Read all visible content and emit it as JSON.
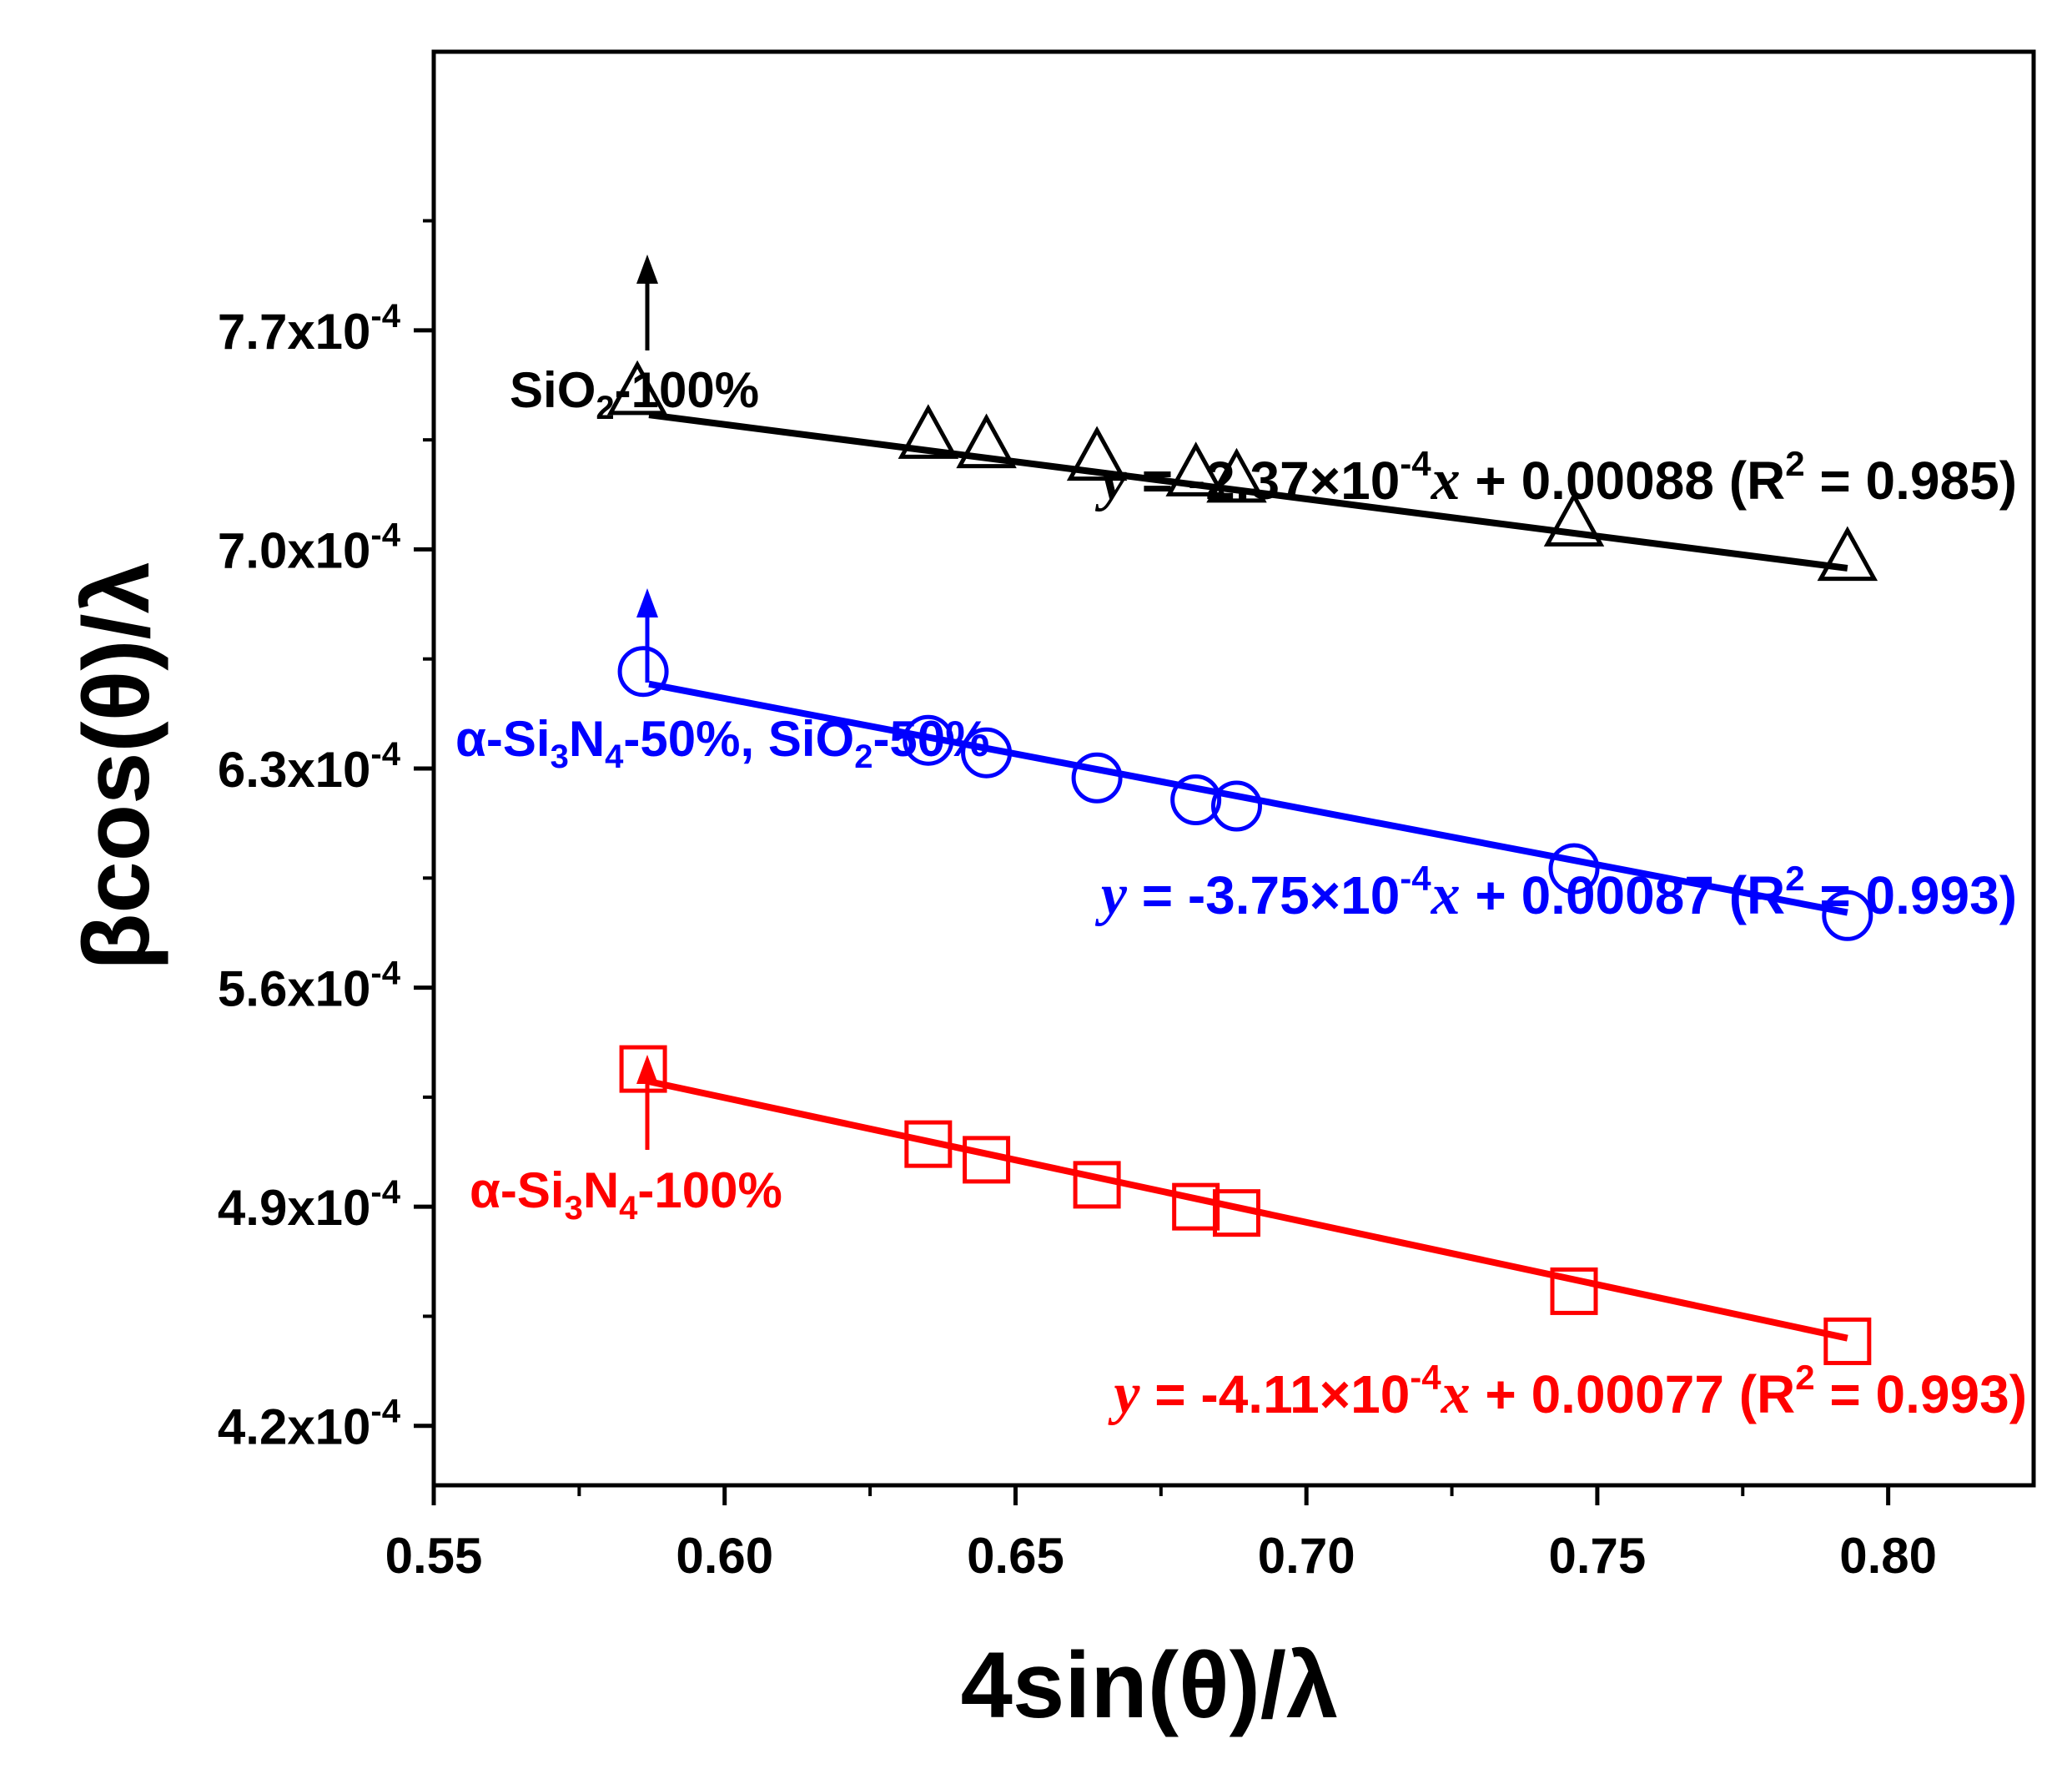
{
  "chart_data": {
    "type": "scatter",
    "xlabel": "4sin(θ)/λ",
    "ylabel": "βcos(θ)/λ",
    "xlim": [
      0.55,
      0.825
    ],
    "ylim": [
      0.000401,
      0.000859
    ],
    "x_ticks": [
      0.55,
      0.6,
      0.65,
      0.7,
      0.75,
      0.8
    ],
    "x_tick_labels": [
      "0.55",
      "0.60",
      "0.65",
      "0.70",
      "0.75",
      "0.80"
    ],
    "y_ticks": [
      0.00042,
      0.00049,
      0.00056,
      0.00063,
      0.0007,
      0.00077
    ],
    "y_tick_labels": [
      {
        "mantissa": "4.2x10",
        "exp": "-4"
      },
      {
        "mantissa": "4.9x10",
        "exp": "-4"
      },
      {
        "mantissa": "5.6x10",
        "exp": "-4"
      },
      {
        "mantissa": "6.3x10",
        "exp": "-4"
      },
      {
        "mantissa": "7.0x10",
        "exp": "-4"
      },
      {
        "mantissa": "7.7x10",
        "exp": "-4"
      }
    ],
    "series": [
      {
        "name": "SiO2-100%",
        "color": "#000000",
        "marker": "triangle",
        "x": [
          0.585,
          0.635,
          0.645,
          0.664,
          0.681,
          0.688,
          0.746,
          0.793
        ],
        "y": [
          0.00075,
          0.000736,
          0.000733,
          0.000729,
          0.000724,
          0.000722,
          0.000708,
          0.000697
        ],
        "fit": {
          "slope": -0.000237,
          "intercept": 0.00088,
          "r2": 0.985
        },
        "fit_line": {
          "x": [
            0.587,
            0.793
          ],
          "y": [
            0.000743,
            0.000694
          ]
        },
        "label": {
          "pre": "SiO",
          "sub": "2",
          "post": "-100%"
        },
        "equation": {
          "y": "y",
          "eq1": " = -2.37×10",
          "exp": "-4",
          "x": "x",
          "eq2": " + 0.00088 (R",
          "r2sup": "2",
          "eq3": " = 0.985)"
        }
      },
      {
        "name": "α-Si3N4-50%, SiO2-50%",
        "color": "#0000ff",
        "marker": "circle",
        "x": [
          0.586,
          0.635,
          0.645,
          0.664,
          0.681,
          0.688,
          0.746,
          0.793
        ],
        "y": [
          0.000661,
          0.000639,
          0.000635,
          0.000627,
          0.00062,
          0.000618,
          0.000598,
          0.000583
        ],
        "fit": {
          "slope": -0.000375,
          "intercept": 0.00087,
          "r2": 0.993
        },
        "fit_line": {
          "x": [
            0.587,
            0.793
          ],
          "y": [
            0.000657,
            0.000584
          ]
        },
        "label": {
          "pre": "α-Si",
          "sub": "3",
          "mid": "N",
          "sub2": "4",
          "mid2": "-50%, SiO",
          "sub3": "2",
          "post": "-50%"
        },
        "equation": {
          "y": "y",
          "eq1": " = -3.75×10",
          "exp": "-4",
          "x": "x",
          "eq2": " + 0.00087 (R",
          "r2sup": "2",
          "eq3": " = 0.993)"
        }
      },
      {
        "name": "α-Si3N4-100%",
        "color": "#ff0000",
        "marker": "square",
        "x": [
          0.586,
          0.635,
          0.645,
          0.664,
          0.681,
          0.688,
          0.746,
          0.793
        ],
        "y": [
          0.000534,
          0.00051,
          0.000505,
          0.000497,
          0.00049,
          0.000488,
          0.000463,
          0.000447
        ],
        "fit": {
          "slope": -0.000411,
          "intercept": 0.00077,
          "r2": 0.993
        },
        "fit_line": {
          "x": [
            0.587,
            0.793
          ],
          "y": [
            0.00053,
            0.000448
          ]
        },
        "label": {
          "pre": "α-Si",
          "sub": "3",
          "mid": "N",
          "sub2": "4",
          "post": "-100%"
        },
        "equation": {
          "y": "y",
          "eq1": " = -4.11×10",
          "exp": "-4",
          "x": "x",
          "eq2": " + 0.00077 (R",
          "r2sup": "2",
          "eq3": " = 0.993)"
        }
      }
    ]
  }
}
